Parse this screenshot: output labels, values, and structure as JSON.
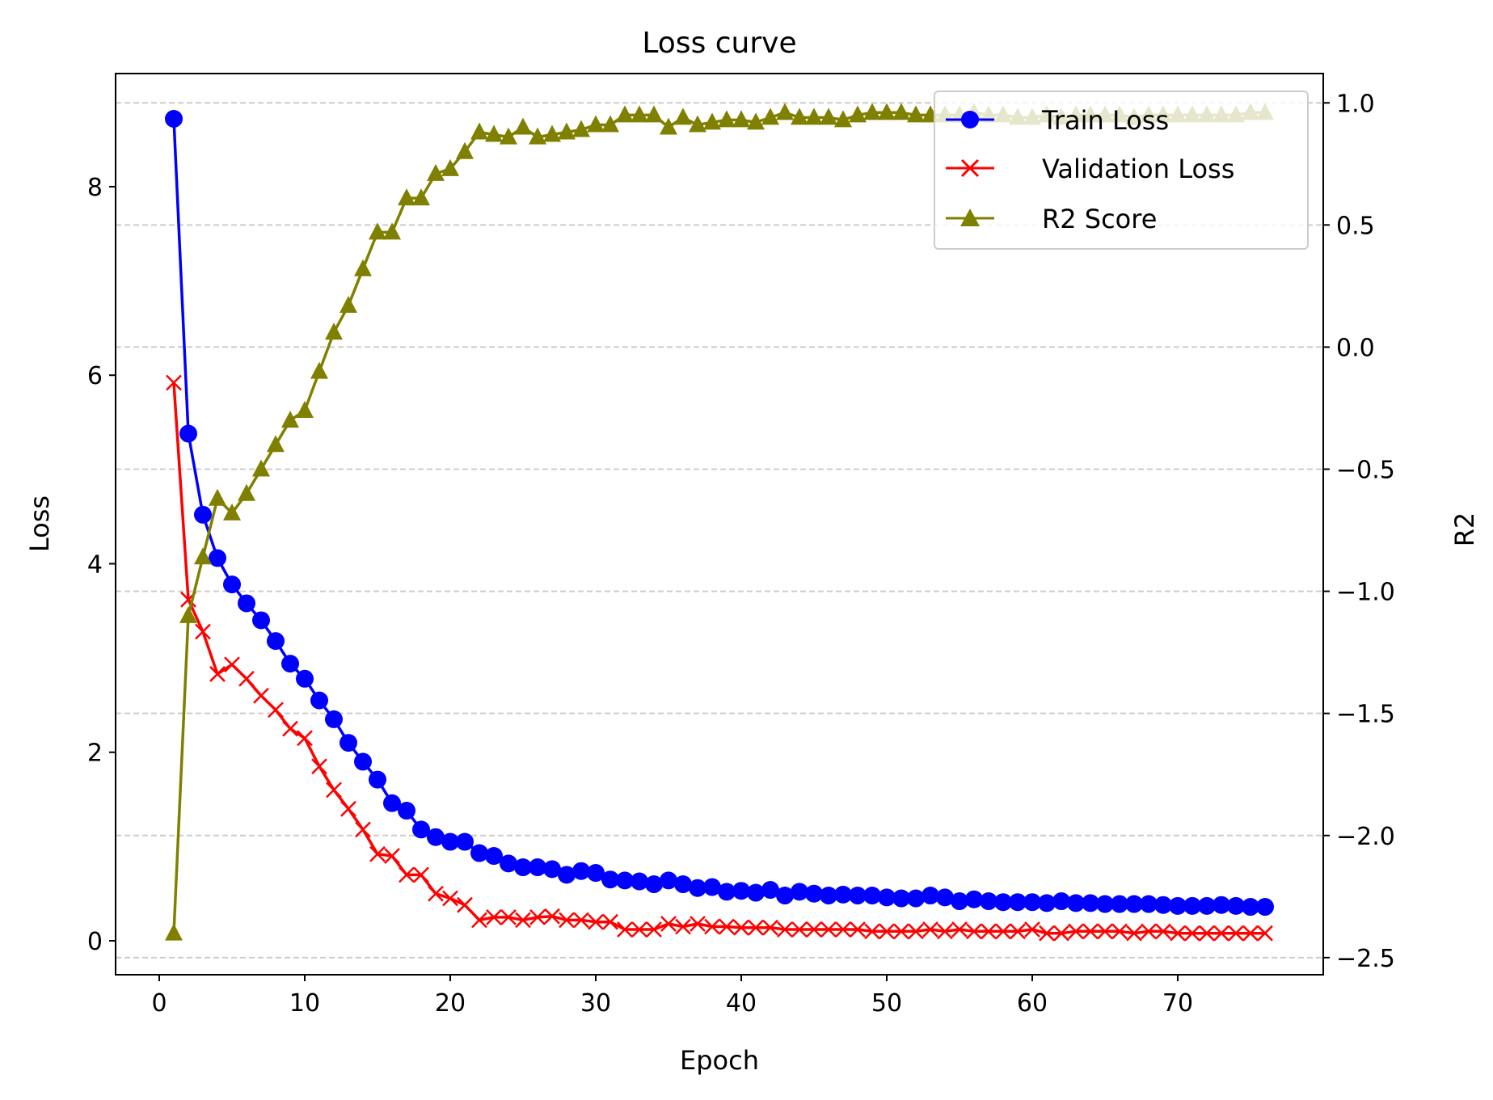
{
  "chart_data": {
    "type": "line",
    "title": "Loss curve",
    "xlabel": "Epoch",
    "ylabel": "Loss",
    "y2label": "R2",
    "xlim": [
      -3,
      80
    ],
    "ylim": [
      -0.36,
      9.2
    ],
    "y2lim": [
      -2.57,
      1.12
    ],
    "xticks": [
      "0",
      "10",
      "20",
      "30",
      "40",
      "50",
      "60",
      "70"
    ],
    "yticks": [
      "0",
      "2",
      "4",
      "6",
      "8"
    ],
    "y2ticks": [
      "−2.5",
      "−2.0",
      "−1.5",
      "−1.0",
      "−0.5",
      "0.0",
      "0.5",
      "1.0"
    ],
    "grid": "horizontal dashed, right axis",
    "legend_position": "top-right",
    "series": [
      {
        "name": "Train Loss",
        "axis": "left",
        "color": "#0000ff",
        "marker": "circle",
        "x": [
          1,
          2,
          3,
          4,
          5,
          6,
          7,
          8,
          9,
          10,
          11,
          12,
          13,
          14,
          15,
          16,
          17,
          18,
          19,
          20,
          21,
          22,
          23,
          24,
          25,
          26,
          27,
          28,
          29,
          30,
          31,
          32,
          33,
          34,
          35,
          36,
          37,
          38,
          39,
          40,
          41,
          42,
          43,
          44,
          45,
          46,
          47,
          48,
          49,
          50,
          51,
          52,
          53,
          54,
          55,
          56,
          57,
          58,
          59,
          60,
          61,
          62,
          63,
          64,
          65,
          66,
          67,
          68,
          69,
          70,
          71,
          72,
          73,
          74,
          75,
          76
        ],
        "values": [
          8.72,
          5.38,
          4.52,
          4.06,
          3.78,
          3.58,
          3.4,
          3.18,
          2.94,
          2.78,
          2.55,
          2.35,
          2.1,
          1.9,
          1.71,
          1.46,
          1.38,
          1.18,
          1.1,
          1.05,
          1.05,
          0.93,
          0.9,
          0.82,
          0.78,
          0.78,
          0.76,
          0.7,
          0.74,
          0.72,
          0.65,
          0.64,
          0.63,
          0.6,
          0.64,
          0.6,
          0.56,
          0.57,
          0.52,
          0.53,
          0.51,
          0.54,
          0.48,
          0.52,
          0.5,
          0.48,
          0.49,
          0.48,
          0.48,
          0.46,
          0.45,
          0.45,
          0.48,
          0.46,
          0.42,
          0.44,
          0.42,
          0.41,
          0.41,
          0.41,
          0.4,
          0.42,
          0.4,
          0.4,
          0.39,
          0.39,
          0.39,
          0.39,
          0.38,
          0.37,
          0.37,
          0.37,
          0.38,
          0.37,
          0.36,
          0.36
        ]
      },
      {
        "name": "Validation Loss",
        "axis": "left",
        "color": "#ff0000",
        "marker": "x",
        "x": [
          1,
          2,
          3,
          4,
          5,
          6,
          7,
          8,
          9,
          10,
          11,
          12,
          13,
          14,
          15,
          16,
          17,
          18,
          19,
          20,
          21,
          22,
          23,
          24,
          25,
          26,
          27,
          28,
          29,
          30,
          31,
          32,
          33,
          34,
          35,
          36,
          37,
          38,
          39,
          40,
          41,
          42,
          43,
          44,
          45,
          46,
          47,
          48,
          49,
          50,
          51,
          52,
          53,
          54,
          55,
          56,
          57,
          58,
          59,
          60,
          61,
          62,
          63,
          64,
          65,
          66,
          67,
          68,
          69,
          70,
          71,
          72,
          73,
          74,
          75,
          76
        ],
        "values": [
          5.92,
          3.62,
          3.28,
          2.83,
          2.93,
          2.78,
          2.6,
          2.45,
          2.25,
          2.15,
          1.85,
          1.6,
          1.4,
          1.18,
          0.92,
          0.9,
          0.7,
          0.7,
          0.5,
          0.45,
          0.38,
          0.22,
          0.25,
          0.25,
          0.22,
          0.25,
          0.26,
          0.22,
          0.22,
          0.2,
          0.2,
          0.12,
          0.12,
          0.12,
          0.18,
          0.15,
          0.18,
          0.15,
          0.15,
          0.14,
          0.14,
          0.14,
          0.12,
          0.12,
          0.12,
          0.12,
          0.12,
          0.12,
          0.1,
          0.1,
          0.1,
          0.1,
          0.12,
          0.1,
          0.12,
          0.1,
          0.1,
          0.1,
          0.1,
          0.12,
          0.08,
          0.08,
          0.1,
          0.1,
          0.1,
          0.1,
          0.08,
          0.1,
          0.1,
          0.08,
          0.08,
          0.08,
          0.08,
          0.08,
          0.08,
          0.08
        ]
      },
      {
        "name": "R2 Score",
        "axis": "right",
        "color": "#808000",
        "marker": "triangle",
        "x": [
          1,
          2,
          3,
          4,
          5,
          6,
          7,
          8,
          9,
          10,
          11,
          12,
          13,
          14,
          15,
          16,
          17,
          18,
          19,
          20,
          21,
          22,
          23,
          24,
          25,
          26,
          27,
          28,
          29,
          30,
          31,
          32,
          33,
          34,
          35,
          36,
          37,
          38,
          39,
          40,
          41,
          42,
          43,
          44,
          45,
          46,
          47,
          48,
          49,
          50,
          51,
          52,
          53,
          54,
          55,
          56,
          57,
          58,
          59,
          60,
          61,
          62,
          63,
          64,
          65,
          66,
          67,
          68,
          69,
          70,
          71,
          72,
          73,
          74,
          75,
          76
        ],
        "values": [
          -2.4,
          -1.1,
          -0.86,
          -0.62,
          -0.68,
          -0.6,
          -0.5,
          -0.4,
          -0.3,
          -0.26,
          -0.1,
          0.06,
          0.17,
          0.32,
          0.47,
          0.47,
          0.61,
          0.61,
          0.71,
          0.73,
          0.8,
          0.88,
          0.87,
          0.86,
          0.9,
          0.86,
          0.87,
          0.88,
          0.89,
          0.91,
          0.91,
          0.95,
          0.95,
          0.95,
          0.9,
          0.94,
          0.91,
          0.92,
          0.93,
          0.93,
          0.92,
          0.94,
          0.96,
          0.94,
          0.94,
          0.94,
          0.93,
          0.95,
          0.96,
          0.96,
          0.96,
          0.95,
          0.95,
          0.95,
          0.95,
          0.96,
          0.95,
          0.95,
          0.94,
          0.94,
          0.95,
          0.94,
          0.95,
          0.95,
          0.95,
          0.95,
          0.94,
          0.95,
          0.95,
          0.95,
          0.95,
          0.95,
          0.95,
          0.95,
          0.96,
          0.96
        ]
      }
    ]
  }
}
